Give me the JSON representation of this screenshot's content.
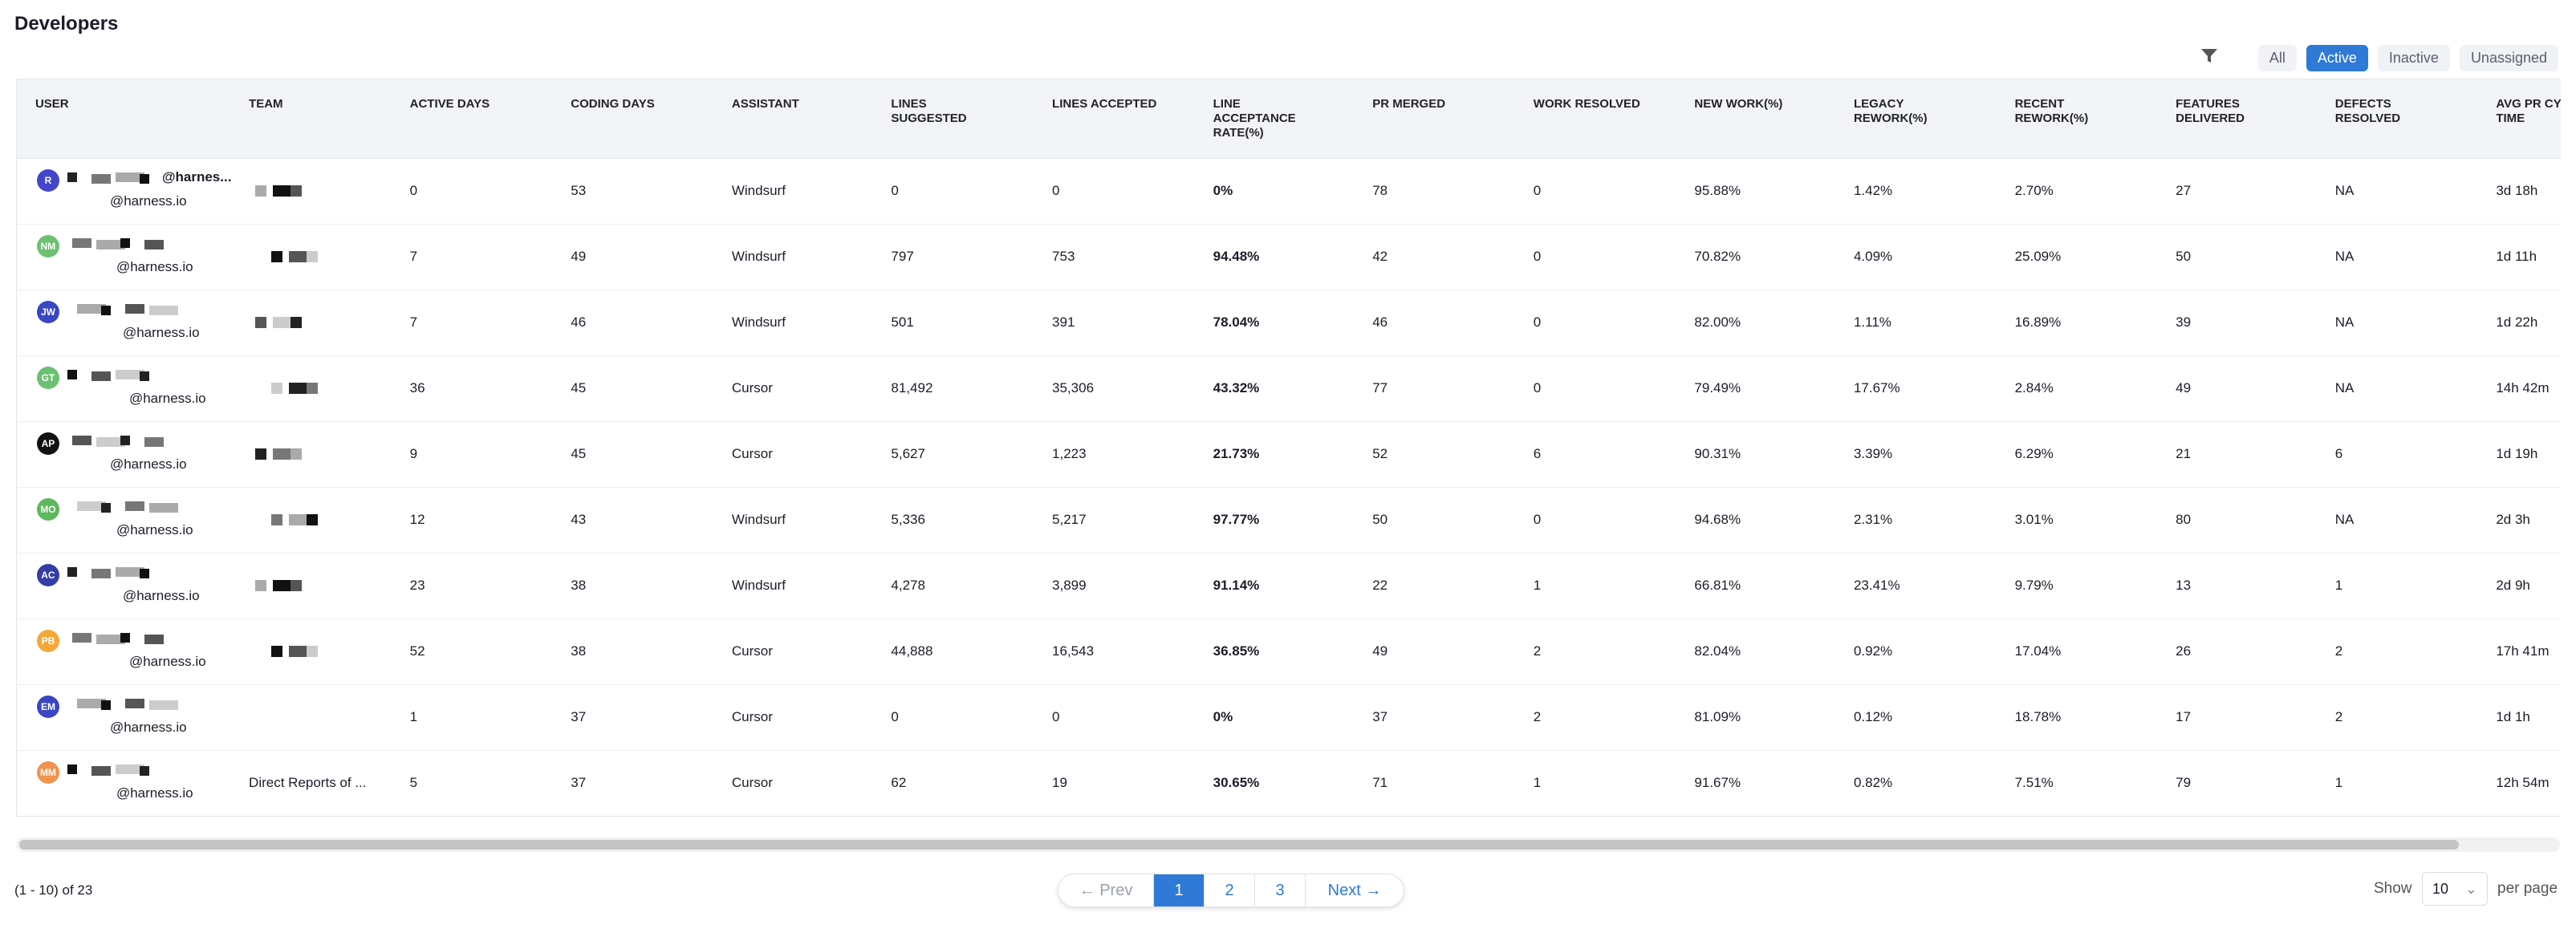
{
  "header": {
    "title": "Developers"
  },
  "filters": {
    "items": [
      "All",
      "Active",
      "Inactive",
      "Unassigned"
    ],
    "active": 1
  },
  "table": {
    "columns": [
      "USER",
      "TEAM",
      "ACTIVE DAYS",
      "CODING DAYS",
      "ASSISTANT",
      "LINES SUGGESTED",
      "LINES ACCEPTED",
      "LINE ACCEPTANCE RATE(%)",
      "PR MERGED",
      "WORK RESOLVED",
      "NEW WORK(%)",
      "LEGACY REWORK(%)",
      "RECENT REWORK(%)",
      "FEATURES DELIVERED",
      "DEFECTS RESOLVED",
      "AVG PR CYCLE TIME"
    ],
    "rows": [
      {
        "initials": "R",
        "avatar_color": "#4446c9",
        "email": [
          "@harnes...",
          "@harness.io"
        ],
        "team": null,
        "cells": [
          "0",
          "53",
          "Windsurf",
          "0",
          "0",
          "0%",
          "78",
          "0",
          "95.88%",
          "1.42%",
          "2.70%",
          "27",
          "NA",
          "3d 18h"
        ]
      },
      {
        "initials": "NM",
        "avatar_color": "#6cc071",
        "email": [
          "@harness.io"
        ],
        "team": null,
        "cells": [
          "7",
          "49",
          "Windsurf",
          "797",
          "753",
          "94.48%",
          "42",
          "0",
          "70.82%",
          "4.09%",
          "25.09%",
          "50",
          "NA",
          "1d 11h"
        ]
      },
      {
        "initials": "JW",
        "avatar_color": "#3a46c2",
        "email": [
          "@harness.io"
        ],
        "team": null,
        "cells": [
          "7",
          "46",
          "Windsurf",
          "501",
          "391",
          "78.04%",
          "46",
          "0",
          "82.00%",
          "1.11%",
          "16.89%",
          "39",
          "NA",
          "1d 22h"
        ]
      },
      {
        "initials": "GT",
        "avatar_color": "#6cc071",
        "email": [
          "@harness.io"
        ],
        "team": null,
        "cells": [
          "36",
          "45",
          "Cursor",
          "81,492",
          "35,306",
          "43.32%",
          "77",
          "0",
          "79.49%",
          "17.67%",
          "2.84%",
          "49",
          "NA",
          "14h 42m"
        ]
      },
      {
        "initials": "AP",
        "avatar_color": "#111111",
        "email": [
          "@harness.io"
        ],
        "team": null,
        "cells": [
          "9",
          "45",
          "Cursor",
          "5,627",
          "1,223",
          "21.73%",
          "52",
          "6",
          "90.31%",
          "3.39%",
          "6.29%",
          "21",
          "6",
          "1d 19h"
        ]
      },
      {
        "initials": "MO",
        "avatar_color": "#5cb85c",
        "email": [
          "@harness.io"
        ],
        "team": null,
        "cells": [
          "12",
          "43",
          "Windsurf",
          "5,336",
          "5,217",
          "97.77%",
          "50",
          "0",
          "94.68%",
          "2.31%",
          "3.01%",
          "80",
          "NA",
          "2d 3h"
        ]
      },
      {
        "initials": "AC",
        "avatar_color": "#363ca6",
        "email": [
          "@harness.io"
        ],
        "team": null,
        "cells": [
          "23",
          "38",
          "Windsurf",
          "4,278",
          "3,899",
          "91.14%",
          "22",
          "1",
          "66.81%",
          "23.41%",
          "9.79%",
          "13",
          "1",
          "2d 9h"
        ]
      },
      {
        "initials": "PB",
        "avatar_color": "#f5a83a",
        "email": [
          "@harness.io"
        ],
        "team": null,
        "cells": [
          "52",
          "38",
          "Cursor",
          "44,888",
          "16,543",
          "36.85%",
          "49",
          "2",
          "82.04%",
          "0.92%",
          "17.04%",
          "26",
          "2",
          "17h 41m"
        ]
      },
      {
        "initials": "EM",
        "avatar_color": "#3a46c2",
        "email": [
          "@harness.io"
        ],
        "team": null,
        "cells": [
          "1",
          "37",
          "Cursor",
          "0",
          "0",
          "0%",
          "37",
          "2",
          "81.09%",
          "0.12%",
          "18.78%",
          "17",
          "2",
          "1d 1h"
        ]
      },
      {
        "initials": "MM",
        "avatar_color": "#f0944d",
        "email": [
          "@harness.io"
        ],
        "team": "Direct Reports of  ...",
        "cells": [
          "5",
          "37",
          "Cursor",
          "62",
          "19",
          "30.65%",
          "71",
          "1",
          "91.67%",
          "0.82%",
          "7.51%",
          "79",
          "1",
          "12h 54m"
        ]
      }
    ]
  },
  "pagination": {
    "summary": "(1 - 10) of 23",
    "prev": "← Prev",
    "pages": [
      "1",
      "2",
      "3"
    ],
    "current": 0,
    "next": "Next →",
    "show": "Show",
    "page_size": "10",
    "per_page": "per page"
  }
}
